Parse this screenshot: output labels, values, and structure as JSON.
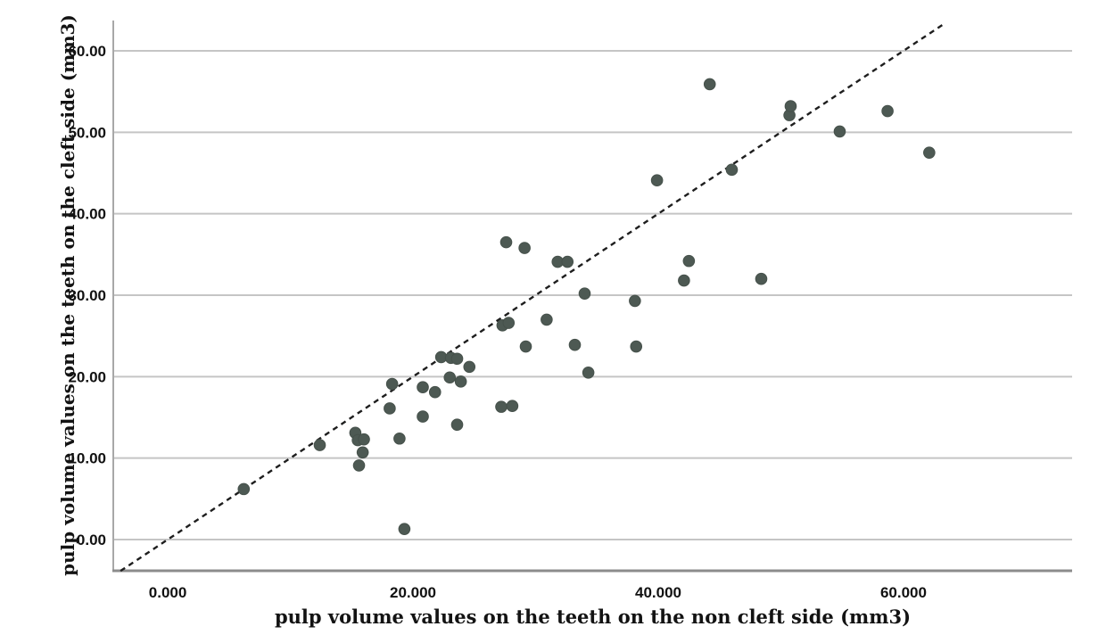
{
  "chart_data": {
    "type": "scatter",
    "title": "",
    "xlabel": "pulp volume values on the teeth on the non cleft side (mm3)",
    "ylabel": "pulp volume values on the teeth on the cleft side (mm3)",
    "xlim": [
      -4.44,
      73.75
    ],
    "ylim": [
      -3.83,
      63.72
    ],
    "x_ticks": [
      {
        "value": 0,
        "label": "0.000"
      },
      {
        "value": 20,
        "label": "20.000"
      },
      {
        "value": 40,
        "label": "40.000"
      },
      {
        "value": 60,
        "label": "60.000"
      }
    ],
    "y_ticks": [
      {
        "value": 0,
        "label": "0.00"
      },
      {
        "value": 10,
        "label": "10.00"
      },
      {
        "value": 20,
        "label": "20.00"
      },
      {
        "value": 30,
        "label": "30.00"
      },
      {
        "value": 40,
        "label": "40.00"
      },
      {
        "value": 50,
        "label": "50.00"
      },
      {
        "value": 60,
        "label": "60.00"
      }
    ],
    "grid": "horizontal",
    "legend": "none",
    "reference_line": {
      "type": "identity",
      "style": "dashed",
      "x1": -3.85,
      "y1": -3.85,
      "x2": 63.4,
      "y2": 63.4
    },
    "points": [
      [
        6.2,
        6.2
      ],
      [
        12.4,
        11.6
      ],
      [
        15.3,
        13.1
      ],
      [
        15.5,
        12.2
      ],
      [
        15.6,
        9.1
      ],
      [
        15.9,
        10.7
      ],
      [
        16.0,
        12.3
      ],
      [
        18.1,
        16.1
      ],
      [
        18.3,
        19.1
      ],
      [
        18.9,
        12.4
      ],
      [
        19.3,
        1.3
      ],
      [
        20.8,
        18.7
      ],
      [
        20.8,
        15.1
      ],
      [
        21.8,
        18.1
      ],
      [
        22.3,
        22.4
      ],
      [
        23.0,
        19.9
      ],
      [
        23.1,
        22.3
      ],
      [
        23.6,
        22.2
      ],
      [
        23.6,
        14.1
      ],
      [
        23.9,
        19.4
      ],
      [
        24.6,
        21.2
      ],
      [
        27.2,
        16.3
      ],
      [
        27.3,
        26.3
      ],
      [
        27.6,
        36.5
      ],
      [
        27.8,
        26.6
      ],
      [
        28.1,
        16.4
      ],
      [
        29.1,
        35.8
      ],
      [
        29.2,
        23.7
      ],
      [
        30.9,
        27.0
      ],
      [
        31.8,
        34.1
      ],
      [
        32.6,
        34.1
      ],
      [
        33.2,
        23.9
      ],
      [
        34.0,
        30.2
      ],
      [
        34.3,
        20.5
      ],
      [
        38.1,
        29.3
      ],
      [
        38.2,
        23.7
      ],
      [
        39.9,
        44.1
      ],
      [
        42.1,
        31.8
      ],
      [
        42.5,
        34.2
      ],
      [
        44.2,
        55.9
      ],
      [
        46.0,
        45.4
      ],
      [
        48.4,
        32.0
      ],
      [
        50.7,
        52.1
      ],
      [
        50.8,
        53.2
      ],
      [
        54.8,
        50.1
      ],
      [
        58.7,
        52.6
      ],
      [
        62.1,
        47.5
      ]
    ],
    "colors": {
      "point_fill": "#4d5953",
      "point_stroke": "#46514b",
      "grid": "#c5c5c5",
      "axis_left": "#a8a8a8",
      "axis_bottom": "#8c8c8c",
      "dash_line": "#1e1e1e",
      "tick_text": "#111111"
    }
  }
}
